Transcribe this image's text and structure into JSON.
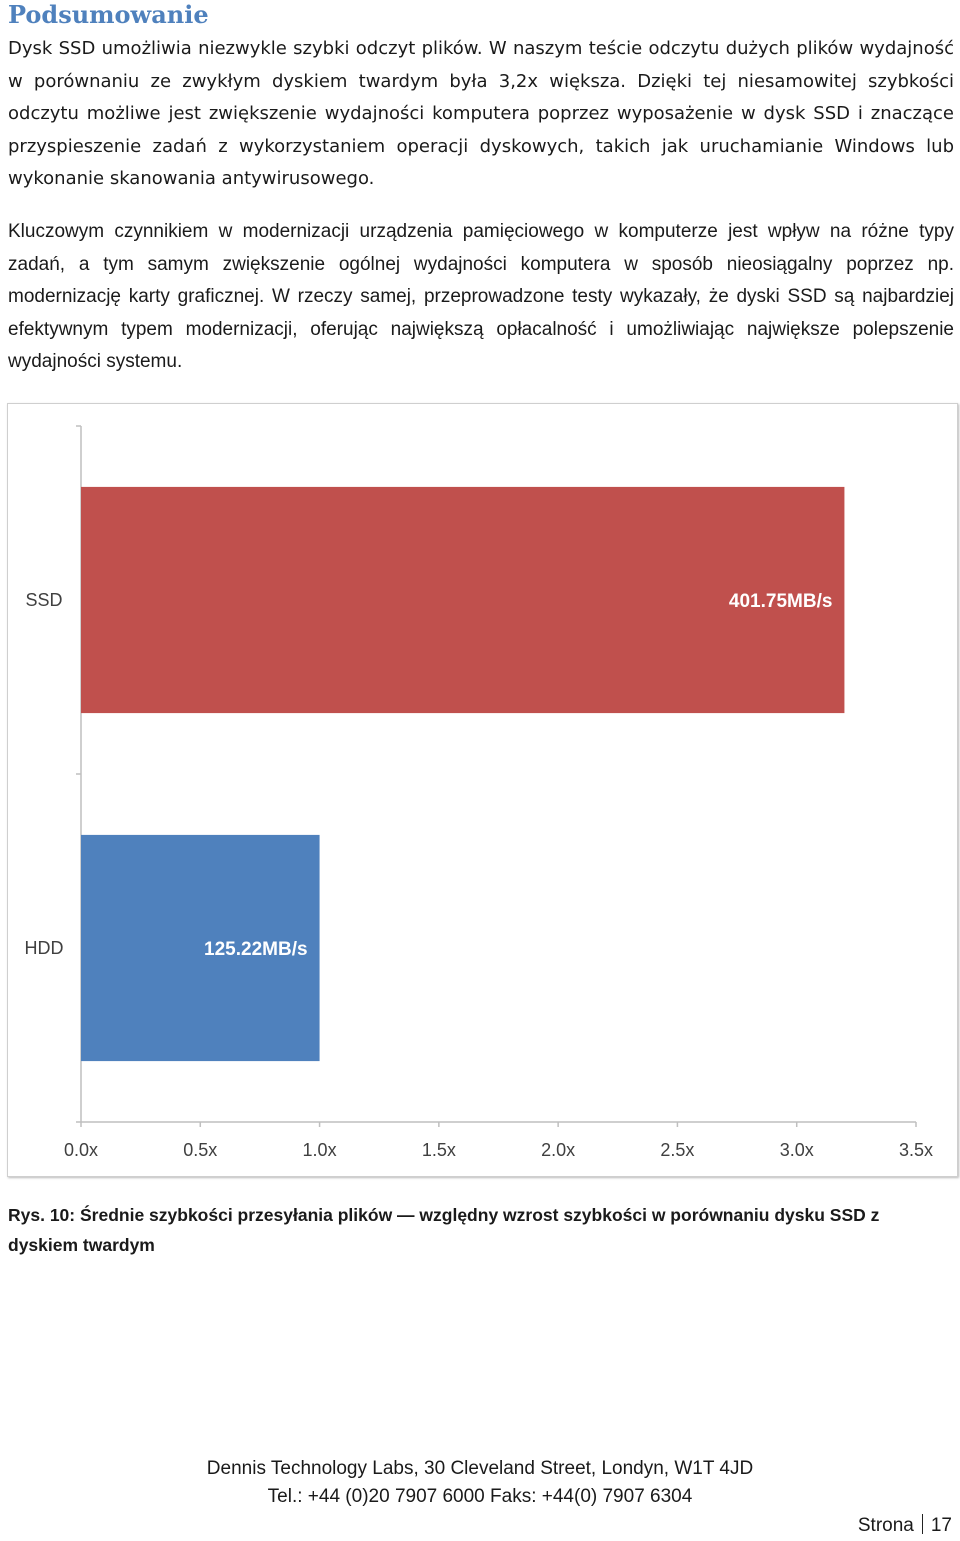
{
  "heading": "Podsumowanie",
  "paragraphs": [
    "Dysk SSD umożliwia niezwykle szybki odczyt plików. W naszym teście odczytu dużych plików wydajność w porównaniu ze zwykłym dyskiem twardym była 3,2x większa. Dzięki tej niesamowitej szybkości odczytu możliwe jest zwiększenie wydajności komputera poprzez wyposażenie w dysk SSD i znaczące przyspieszenie zadań z wykorzystaniem operacji dyskowych, takich jak uruchamianie Windows lub wykonanie skanowania antywirusowego.",
    "Kluczowym czynnikiem w modernizacji urządzenia pamięciowego w komputerze jest wpływ na różne typy zadań, a tym samym zwiększenie ogólnej wydajności komputera w sposób nieosiągalny poprzez np. modernizację karty graficznej. W rzeczy samej, przeprowadzone testy wykazały, że dyski SSD są najbardziej efektywnym typem modernizacji, oferując największą opłacalność i umożliwiając największe polepszenie wydajności systemu."
  ],
  "chart_data": {
    "type": "bar",
    "orientation": "horizontal",
    "categories": [
      "SSD",
      "HDD"
    ],
    "values": [
      3.2,
      1.0
    ],
    "data_labels": [
      "401.75MB/s",
      "125.22MB/s"
    ],
    "colors": [
      "#c0504d",
      "#4f81bd"
    ],
    "xlim": [
      0,
      3.5
    ],
    "xticks": [
      "0.0x",
      "0.5x",
      "1.0x",
      "1.5x",
      "2.0x",
      "2.5x",
      "3.0x",
      "3.5x"
    ],
    "title": "",
    "xlabel": "",
    "ylabel": "",
    "grid": false
  },
  "caption": "Rys. 10: Średnie szybkości przesyłania plików — względny wzrost szybkości w porównaniu dysku SSD z dyskiem twardym",
  "footer": {
    "line1": "Dennis Technology Labs, 30 Cleveland Street, Londyn, W1T 4JD",
    "line2": "Tel.: +44 (0)20 7907 6000 Faks: +44(0) 7907 6304",
    "page_label": "Strona",
    "page_number": "17"
  }
}
